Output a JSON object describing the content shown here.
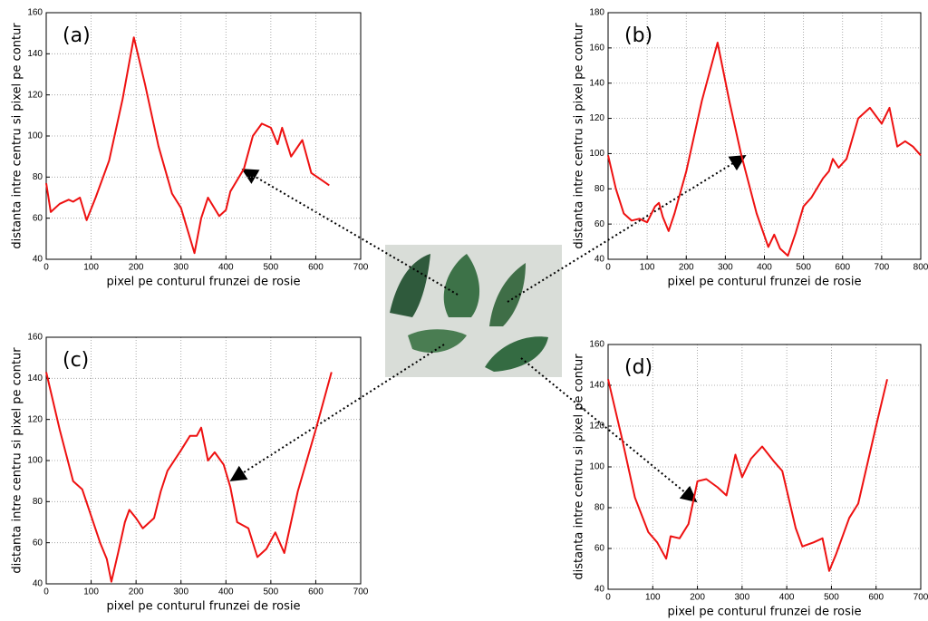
{
  "chart_data": [
    {
      "type": "line",
      "annotation": "(a)",
      "x_label": "pixel pe conturul frunzei de rosie",
      "y_label": "distanta intre centru si pixel pe contur",
      "color": "#ee1111",
      "grid": true,
      "x": [
        0,
        10,
        30,
        50,
        60,
        75,
        90,
        110,
        140,
        170,
        195,
        220,
        250,
        280,
        300,
        330,
        345,
        360,
        385,
        400,
        410,
        440,
        460,
        480,
        500,
        515,
        525,
        545,
        570,
        590,
        610,
        630
      ],
      "values": [
        77,
        63,
        67,
        69,
        68,
        70,
        59,
        70,
        88,
        118,
        148,
        125,
        95,
        72,
        65,
        43,
        60,
        70,
        61,
        64,
        73,
        84,
        100,
        106,
        104,
        96,
        104,
        90,
        98,
        82,
        79,
        76
      ],
      "xlim": [
        0,
        700
      ],
      "xticks": [
        0,
        100,
        200,
        300,
        400,
        500,
        600,
        700
      ],
      "ylim": [
        40,
        160
      ],
      "yticks": [
        40,
        60,
        80,
        100,
        120,
        140,
        160
      ]
    },
    {
      "type": "line",
      "annotation": "(b)",
      "x_label": "pixel pe conturul frunzei de rosie",
      "y_label": "distanta intre centru si pixel pe contur",
      "color": "#ee1111",
      "grid": true,
      "x": [
        0,
        20,
        40,
        60,
        80,
        100,
        120,
        130,
        140,
        155,
        170,
        200,
        240,
        280,
        310,
        340,
        380,
        410,
        425,
        440,
        460,
        480,
        500,
        520,
        550,
        565,
        575,
        590,
        610,
        640,
        670,
        700,
        720,
        740,
        760,
        780,
        800
      ],
      "values": [
        99,
        80,
        66,
        62,
        63,
        61,
        70,
        72,
        64,
        56,
        66,
        90,
        130,
        163,
        130,
        100,
        66,
        47,
        54,
        46,
        42,
        55,
        70,
        75,
        86,
        90,
        97,
        92,
        97,
        120,
        126,
        117,
        126,
        104,
        107,
        104,
        99
      ],
      "xlim": [
        0,
        800
      ],
      "xticks": [
        0,
        100,
        200,
        300,
        400,
        500,
        600,
        700,
        800
      ],
      "ylim": [
        40,
        180
      ],
      "yticks": [
        40,
        60,
        80,
        100,
        120,
        140,
        160,
        180
      ]
    },
    {
      "type": "line",
      "annotation": "(c)",
      "x_label": "pixel pe conturul frunzei de rosie",
      "y_label": "distanta intre centru si pixel pe contur",
      "color": "#ee1111",
      "grid": true,
      "x": [
        0,
        30,
        60,
        80,
        100,
        120,
        135,
        145,
        160,
        175,
        185,
        200,
        215,
        240,
        255,
        270,
        300,
        320,
        335,
        345,
        360,
        375,
        395,
        410,
        425,
        450,
        470,
        490,
        510,
        530,
        560,
        600,
        635
      ],
      "values": [
        143,
        115,
        90,
        86,
        73,
        60,
        52,
        41,
        55,
        70,
        76,
        72,
        67,
        72,
        85,
        95,
        105,
        112,
        112,
        116,
        100,
        104,
        98,
        87,
        70,
        67,
        53,
        57,
        65,
        55,
        85,
        115,
        143
      ],
      "xlim": [
        0,
        700
      ],
      "xticks": [
        0,
        100,
        200,
        300,
        400,
        500,
        600,
        700
      ],
      "ylim": [
        40,
        160
      ],
      "yticks": [
        40,
        60,
        80,
        100,
        120,
        140,
        160
      ]
    },
    {
      "type": "line",
      "annotation": "(d)",
      "x_label": "pixel pe conturul frunzei de rosie",
      "y_label": "distanta intre centru si pixel pe contur",
      "color": "#ee1111",
      "grid": true,
      "x": [
        0,
        30,
        60,
        90,
        110,
        130,
        140,
        160,
        180,
        200,
        220,
        245,
        265,
        285,
        300,
        320,
        345,
        370,
        390,
        420,
        435,
        460,
        480,
        495,
        510,
        540,
        560,
        600,
        625
      ],
      "values": [
        143,
        115,
        85,
        68,
        63,
        55,
        66,
        65,
        72,
        93,
        94,
        90,
        86,
        106,
        95,
        104,
        110,
        103,
        98,
        70,
        61,
        63,
        65,
        49,
        57,
        75,
        82,
        120,
        143
      ],
      "xlim": [
        0,
        700
      ],
      "xticks": [
        0,
        100,
        200,
        300,
        400,
        500,
        600,
        700
      ],
      "ylim": [
        40,
        160
      ],
      "yticks": [
        40,
        60,
        80,
        100,
        120,
        140,
        160
      ]
    }
  ]
}
